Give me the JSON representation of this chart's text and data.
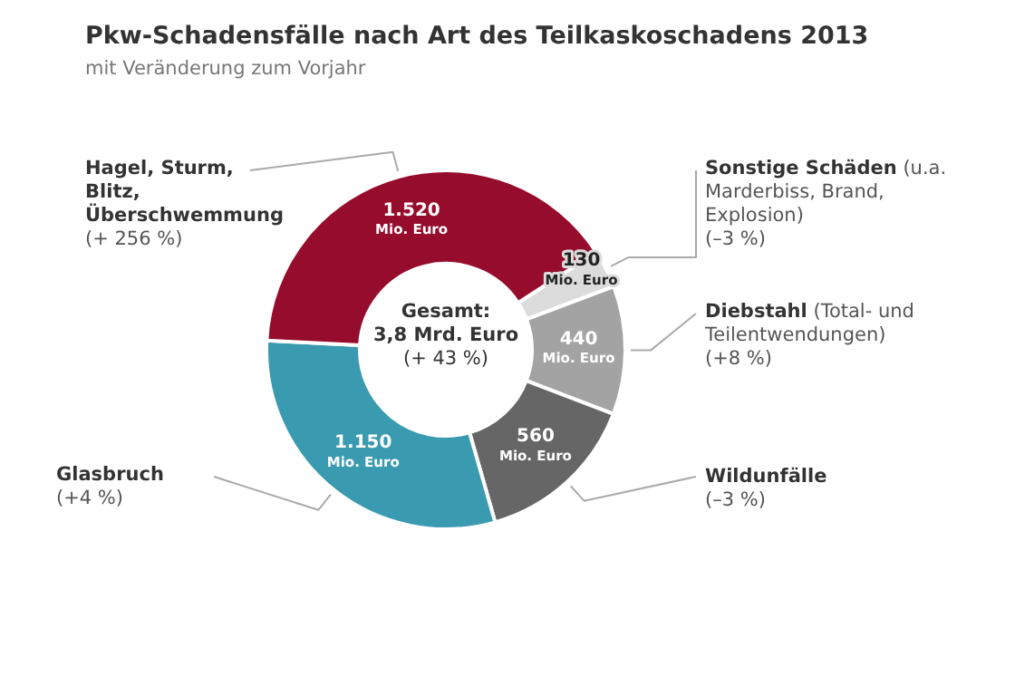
{
  "chart_data": {
    "type": "donut",
    "title": "Pkw-Schadensfälle nach Art des Teilkaskoschadens 2013",
    "subtitle": "mit Veränderung zum Vorjahr",
    "categories": [
      "Sonstige Schäden (u.a. Marderbiss, Brand, Explosion)",
      "Diebstahl (Total- und Teilentwendungen)",
      "Wildunfälle",
      "Glasbruch",
      "Hagel, Sturm, Blitz, Überschwemmung"
    ],
    "values": [
      130,
      440,
      560,
      1150,
      1520
    ],
    "colors": [
      "#dcdcdc",
      "#a3a3a3",
      "#666666",
      "#3a9ab0",
      "#960c2c"
    ],
    "value_labels": [
      "130 Mio. Euro",
      "440 Mio. Euro",
      "560 Mio. Euro",
      "1.150 Mio. Euro",
      "1.520 Mio. Euro"
    ],
    "annotations": [
      "Gesamt: 3,8 Mrd. Euro (+ 43 %)",
      {
        "text": "(–3 %)",
        "x": "Sonstige Schäden (u.a. Marderbiss, Brand, Explosion)"
      },
      {
        "text": "(+8 %)",
        "x": "Diebstahl (Total- und Teilentwendungen)"
      },
      {
        "text": "(–3 %)",
        "x": "Wildunfälle"
      },
      {
        "text": "(+4 %)",
        "x": "Glasbruch"
      },
      {
        "text": "(+ 256 %)",
        "x": "Hagel, Sturm, Blitz, Überschwemmung"
      }
    ],
    "legend": false
  }
}
